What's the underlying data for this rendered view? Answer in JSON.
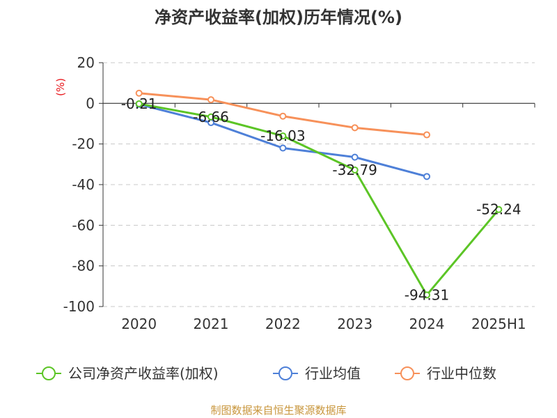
{
  "chart_data": {
    "type": "line",
    "title": "净资产收益率(加权)历年情况(%)",
    "unit_label": "(%)",
    "categories": [
      "2020",
      "2021",
      "2022",
      "2023",
      "2024",
      "2025H1"
    ],
    "ylim": [
      -100,
      20
    ],
    "yticks": [
      20,
      0,
      -20,
      -40,
      -60,
      -80,
      -100
    ],
    "grid": true,
    "legend_position": "bottom",
    "series": [
      {
        "name": "公司净资产收益率(加权)",
        "color": "#5cc526",
        "values": [
          -0.21,
          -6.66,
          -16.03,
          -32.79,
          -94.31,
          -52.24
        ],
        "labels": [
          "-0.21",
          "-6.66",
          "-16.03",
          "-32.79",
          "-94.31",
          "-52.24"
        ]
      },
      {
        "name": "行业均值",
        "color": "#4e80d8",
        "values": [
          -0.5,
          -9.5,
          -22,
          -26.5,
          -36,
          null
        ]
      },
      {
        "name": "行业中位数",
        "color": "#f7915a",
        "values": [
          5,
          1.8,
          -6.3,
          -12,
          -15.5,
          null
        ]
      }
    ]
  },
  "source_text": "制图数据来自恒生聚源数据库"
}
